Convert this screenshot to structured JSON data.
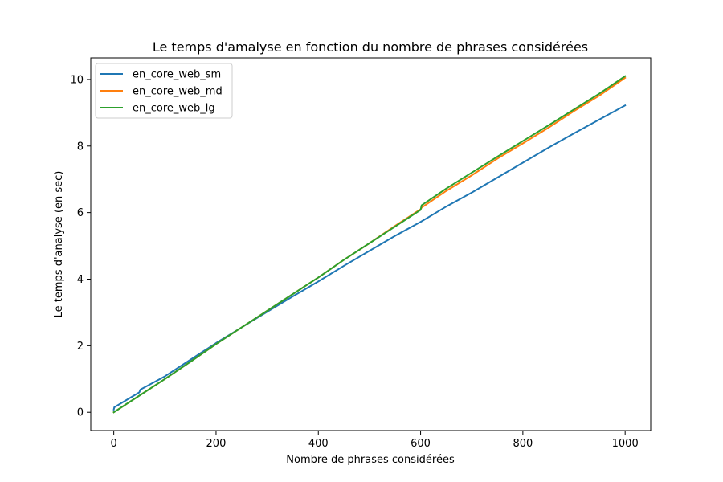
{
  "chart_data": {
    "type": "line",
    "title": "Le temps d'amalyse en fonction du nombre de phrases considérées",
    "xlabel": "Nombre de phrases considérées",
    "ylabel": "Le temps d'analyse (en sec)",
    "xlim": [
      -45,
      1050
    ],
    "ylim": [
      -0.55,
      10.65
    ],
    "xticks": [
      0,
      200,
      400,
      600,
      800,
      1000
    ],
    "yticks": [
      0,
      2,
      4,
      6,
      8,
      10
    ],
    "grid": false,
    "legend_position": "top-left",
    "series": [
      {
        "name": "en_core_web_sm",
        "color": "#1f77b4",
        "x": [
          0,
          1,
          50,
          52,
          100,
          150,
          200,
          250,
          300,
          350,
          400,
          450,
          500,
          550,
          600,
          650,
          700,
          750,
          800,
          850,
          900,
          950,
          1000
        ],
        "y": [
          0.08,
          0.15,
          0.6,
          0.68,
          1.08,
          1.58,
          2.08,
          2.55,
          3.02,
          3.48,
          3.93,
          4.4,
          4.85,
          5.3,
          5.72,
          6.18,
          6.6,
          7.05,
          7.5,
          7.95,
          8.38,
          8.8,
          9.22
        ]
      },
      {
        "name": "en_core_web_md",
        "color": "#ff7f0e",
        "x": [
          0,
          50,
          100,
          150,
          200,
          250,
          300,
          350,
          400,
          450,
          500,
          550,
          600,
          602,
          650,
          700,
          750,
          800,
          850,
          900,
          950,
          1000
        ],
        "y": [
          0.0,
          0.5,
          1.0,
          1.52,
          2.05,
          2.55,
          3.05,
          3.55,
          4.05,
          4.58,
          5.08,
          5.6,
          6.1,
          6.15,
          6.65,
          7.12,
          7.62,
          8.08,
          8.55,
          9.05,
          9.52,
          10.05
        ]
      },
      {
        "name": "en_core_web_lg",
        "color": "#2ca02c",
        "x": [
          0,
          50,
          100,
          150,
          200,
          250,
          300,
          350,
          400,
          450,
          500,
          550,
          600,
          602,
          650,
          700,
          750,
          800,
          850,
          900,
          950,
          1000
        ],
        "y": [
          0.0,
          0.5,
          1.0,
          1.52,
          2.05,
          2.55,
          3.05,
          3.55,
          4.05,
          4.58,
          5.08,
          5.58,
          6.08,
          6.22,
          6.72,
          7.2,
          7.68,
          8.15,
          8.62,
          9.1,
          9.58,
          10.1
        ]
      }
    ]
  }
}
